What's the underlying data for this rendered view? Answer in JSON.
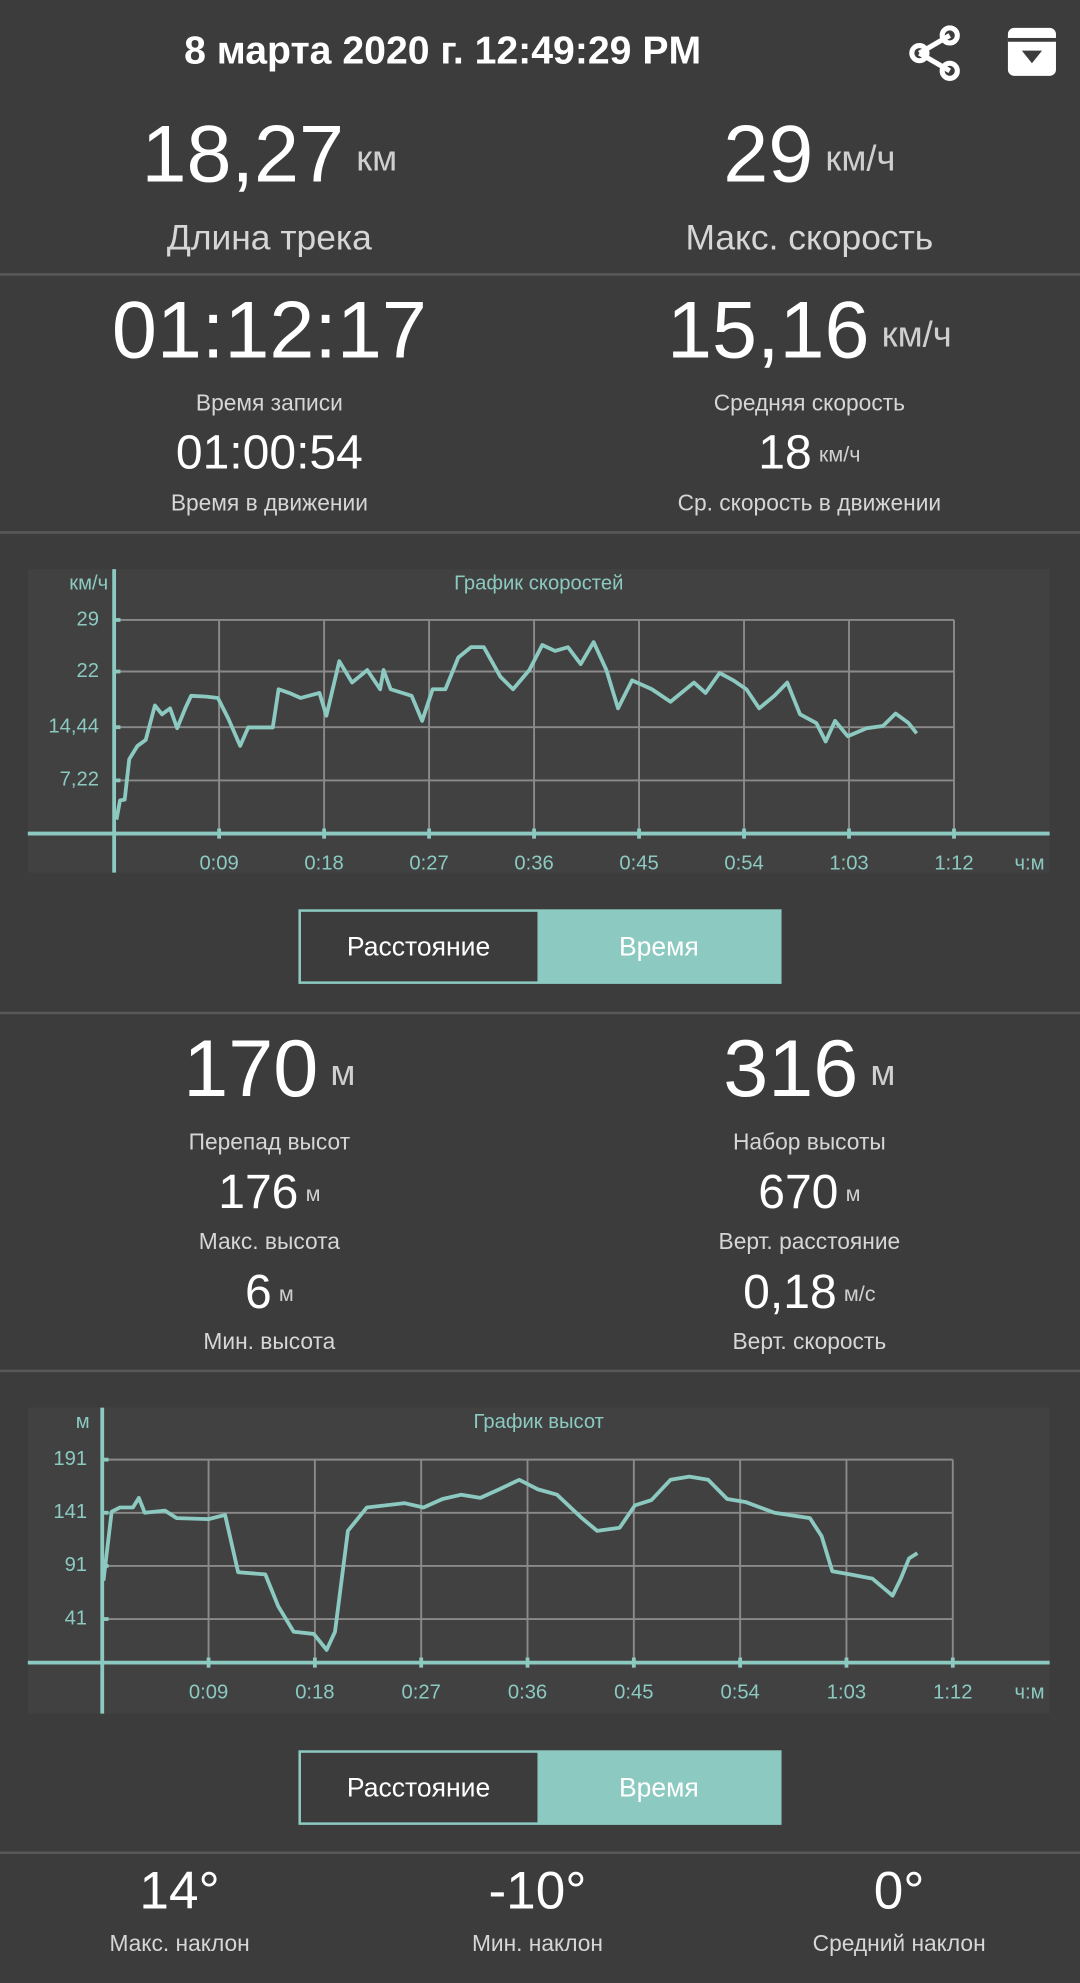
{
  "header": {
    "title": "8 марта 2020 г. 12:49:29 PM"
  },
  "stats": [
    {
      "value": "18,27",
      "unit": "км",
      "label": "Длина трека"
    },
    {
      "value": "29",
      "unit": "км/ч",
      "label": "Макс. скорость"
    },
    {
      "value": "01:12:17",
      "label": "Время записи"
    },
    {
      "value": "15,16",
      "unit": "км/ч",
      "label": "Средняя скорость"
    },
    {
      "value": "01:00:54",
      "label": "Время в движении"
    },
    {
      "value": "18",
      "unit": "км/ч",
      "label": "Ср. скорость в движении"
    },
    {
      "value": "170",
      "unit": "м",
      "label": "Перепад высот"
    },
    {
      "value": "316",
      "unit": "м",
      "label": "Набор высоты"
    },
    {
      "value": "176",
      "unit": "м",
      "label": "Макс. высота"
    },
    {
      "value": "670",
      "unit": "м",
      "label": "Верт. расстояние"
    },
    {
      "value": "6",
      "unit": "м",
      "label": "Мин. высота"
    },
    {
      "value": "0,18",
      "unit": "м/с",
      "label": "Верт. скорость"
    },
    {
      "value": "14°",
      "label": "Макс. наклон"
    },
    {
      "value": "-10°",
      "label": "Мин. наклон"
    },
    {
      "value": "0°",
      "label": "Средний наклон"
    }
  ],
  "toggles": [
    [
      "Расстояние",
      "Время"
    ],
    [
      "Расстояние",
      "Время"
    ]
  ],
  "chart_data": [
    {
      "type": "line",
      "title": "График скоростей",
      "y_label": "км/ч",
      "x_label": "ч:м",
      "color": "#8cc9c0",
      "grid": true,
      "x": [
        0.2,
        0.5,
        0.9,
        1.3,
        2.0,
        2.7,
        3.5,
        4.1,
        4.8,
        5.4,
        6.1,
        6.6,
        7.9,
        8.9,
        9.8,
        10.8,
        11.5,
        13.6,
        14.1,
        15.0,
        16.0,
        17.6,
        18.2,
        19.3,
        20.4,
        21.7,
        22.8,
        23.1,
        23.7,
        25.5,
        26.4,
        27.3,
        28.4,
        29.5,
        30.6,
        31.7,
        33.1,
        34.2,
        35.6,
        36.7,
        37.8,
        38.9,
        40.0,
        41.1,
        42.2,
        43.2,
        44.4,
        46.1,
        47.7,
        49.7,
        50.7,
        51.9,
        53.1,
        54.2,
        55.3,
        56.6,
        57.7,
        58.8,
        60.2,
        61.0,
        61.8,
        62.9,
        64.5,
        65.9,
        67.0,
        68.1,
        68.8
      ],
      "values": [
        1.9,
        4.5,
        4.6,
        10.1,
        11.9,
        12.7,
        17.4,
        16.2,
        17.0,
        14.3,
        17.0,
        18.7,
        18.6,
        18.4,
        15.6,
        11.9,
        14.4,
        14.4,
        19.6,
        19.1,
        18.4,
        19.1,
        16.0,
        23.4,
        20.5,
        22.2,
        19.6,
        22.2,
        19.6,
        18.7,
        15.3,
        19.6,
        19.6,
        23.9,
        25.3,
        25.3,
        21.3,
        19.6,
        22.2,
        25.6,
        24.8,
        25.3,
        23.0,
        26.0,
        22.2,
        17.0,
        20.8,
        19.6,
        17.9,
        20.5,
        19.1,
        21.8,
        20.8,
        19.6,
        17.0,
        18.7,
        20.5,
        16.2,
        15.0,
        12.5,
        15.3,
        13.2,
        14.3,
        14.6,
        16.3,
        15.0,
        13.6
      ],
      "xlim": [
        -7.4,
        80.2
      ],
      "ylim": [
        -5.3,
        35.9
      ],
      "xticks": [
        {
          "value": 9,
          "label": "0:09"
        },
        {
          "value": 18,
          "label": "0:18"
        },
        {
          "value": 27,
          "label": "0:27"
        },
        {
          "value": 36,
          "label": "0:36"
        },
        {
          "value": 45,
          "label": "0:45"
        },
        {
          "value": 54,
          "label": "0:54"
        },
        {
          "value": 63,
          "label": "1:03"
        },
        {
          "value": 72,
          "label": "1:12"
        }
      ],
      "yticks": [
        29,
        22,
        {
          "value": 14.44,
          "label": "14,44"
        },
        {
          "value": 7.22,
          "label": "7,22"
        }
      ]
    },
    {
      "type": "line",
      "title": "График высот",
      "y_label": "м",
      "x_label": "ч:м",
      "color": "#8cc9c0",
      "grid": true,
      "x": [
        0.1,
        0.8,
        1.5,
        2.6,
        3.1,
        3.6,
        5.3,
        6.3,
        9.0,
        10.4,
        11.5,
        13.8,
        14.9,
        16.2,
        17.9,
        19.0,
        19.7,
        20.8,
        22.4,
        25.6,
        27.2,
        28.8,
        30.4,
        32.0,
        33.6,
        35.3,
        36.9,
        38.5,
        40.6,
        41.9,
        43.8,
        45.1,
        46.5,
        48.1,
        49.7,
        51.3,
        52.9,
        54.5,
        56.9,
        59.9,
        60.9,
        61.8,
        63.3,
        65.2,
        66.9,
        67.6,
        68.3,
        69.0
      ],
      "values": [
        77,
        142,
        146,
        146,
        155,
        141,
        143,
        136,
        135,
        139,
        85,
        83,
        53,
        29,
        27,
        12,
        29,
        124,
        146,
        150,
        146,
        154,
        158,
        155,
        163,
        172,
        163,
        158,
        136,
        124,
        127,
        148,
        153,
        172,
        175,
        172,
        154,
        151,
        141,
        136,
        119,
        86,
        83,
        79,
        63,
        79,
        98,
        103
      ],
      "xlim": [
        -6.3,
        80.2
      ],
      "ylim": [
        -48,
        240
      ],
      "xticks": [
        {
          "value": 9,
          "label": "0:09"
        },
        {
          "value": 18,
          "label": "0:18"
        },
        {
          "value": 27,
          "label": "0:27"
        },
        {
          "value": 36,
          "label": "0:36"
        },
        {
          "value": 45,
          "label": "0:45"
        },
        {
          "value": 54,
          "label": "0:54"
        },
        {
          "value": 63,
          "label": "1:03"
        },
        {
          "value": 72,
          "label": "1:12"
        }
      ],
      "yticks": [
        191,
        141,
        91,
        41
      ]
    }
  ]
}
